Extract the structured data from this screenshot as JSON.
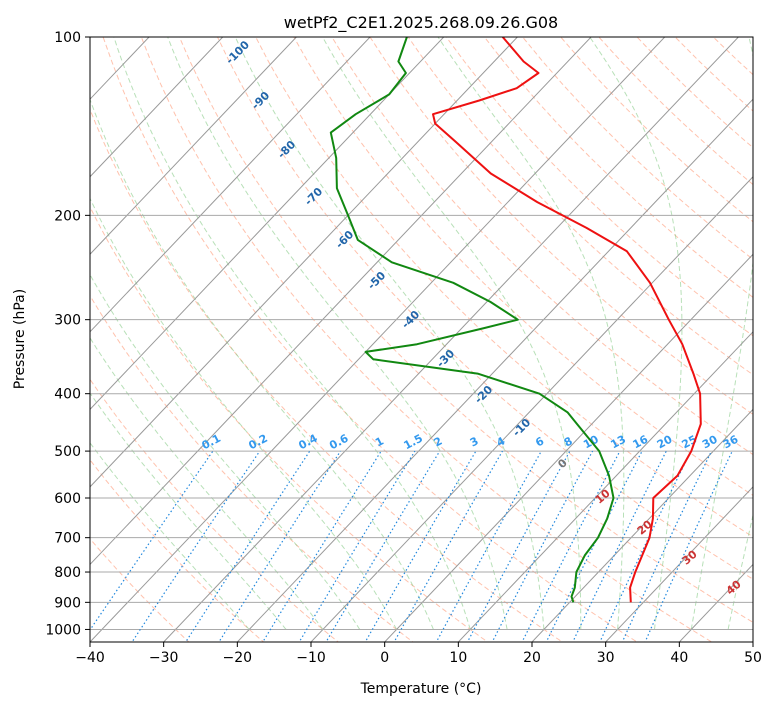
{
  "chart_data": {
    "type": "skew-t",
    "title": "wetPf2_C2E1.2025.268.09.26.G08",
    "xlabel": "Temperature (°C)",
    "ylabel": "Pressure (hPa)",
    "xlim": [
      -40,
      50
    ],
    "ylim_hpa": [
      1050,
      100
    ],
    "x_ticks": [
      -40,
      -30,
      -20,
      -10,
      0,
      10,
      20,
      30,
      40,
      50
    ],
    "x_tick_labels": [
      "−40",
      "−30",
      "−20",
      "−10",
      "0",
      "10",
      "20",
      "30",
      "40",
      "50"
    ],
    "y_ticks": [
      1000,
      900,
      800,
      700,
      600,
      500,
      400,
      300,
      200,
      100
    ],
    "y_tick_labels": [
      "1000",
      "900",
      "800",
      "700",
      "600",
      "500",
      "400",
      "300",
      "200",
      "100"
    ],
    "grid": true,
    "colors": {
      "temperature": "#ee1111",
      "dewpoint": "#118811",
      "isotherm": "#999999",
      "dry_adiabat": "#ff9977",
      "moist_adiabat": "#88cc88",
      "mixing_ratio": "#2288dd",
      "isotherm_label": "#2266aa",
      "dry_label": "#cc3333",
      "zero_label": "#777777"
    },
    "series": [
      {
        "name": "Temperature",
        "points": [
          [
            28.3,
            900
          ],
          [
            26.3,
            850
          ],
          [
            25.0,
            800
          ],
          [
            23.8,
            750
          ],
          [
            22.5,
            700
          ],
          [
            20.5,
            650
          ],
          [
            17.9,
            600
          ],
          [
            18.3,
            550
          ],
          [
            17.0,
            500
          ],
          [
            14.8,
            450
          ],
          [
            10.8,
            400
          ],
          [
            7.3,
            370
          ],
          [
            2.0,
            330
          ],
          [
            -3.0,
            300
          ],
          [
            -10.3,
            260
          ],
          [
            -17.5,
            230
          ],
          [
            -26.0,
            210
          ],
          [
            -36.0,
            190
          ],
          [
            -46.0,
            170
          ],
          [
            -55.0,
            150
          ],
          [
            -60.0,
            140
          ],
          [
            -61.5,
            135
          ],
          [
            -57.0,
            128
          ],
          [
            -53.5,
            122
          ],
          [
            -52.5,
            115
          ],
          [
            -56.0,
            110
          ],
          [
            -62.0,
            100
          ]
        ]
      },
      {
        "name": "Dewpoint",
        "points": [
          [
            20.5,
            900
          ],
          [
            19.5,
            880
          ],
          [
            18.8,
            850
          ],
          [
            17.0,
            800
          ],
          [
            16.0,
            750
          ],
          [
            15.5,
            700
          ],
          [
            14.3,
            650
          ],
          [
            12.5,
            600
          ],
          [
            9.0,
            550
          ],
          [
            4.5,
            500
          ],
          [
            -2.0,
            450
          ],
          [
            -4.8,
            430
          ],
          [
            -11.0,
            400
          ],
          [
            -22.0,
            370
          ],
          [
            -38.0,
            350
          ],
          [
            -40.0,
            340
          ],
          [
            -34.0,
            330
          ],
          [
            -27.0,
            310
          ],
          [
            -23.5,
            300
          ],
          [
            -29.5,
            280
          ],
          [
            -37.0,
            260
          ],
          [
            -48.0,
            240
          ],
          [
            -55.5,
            220
          ],
          [
            -60.0,
            200
          ],
          [
            -65.0,
            180
          ],
          [
            -69.0,
            160
          ],
          [
            -73.0,
            145
          ],
          [
            -72.0,
            135
          ],
          [
            -70.0,
            125
          ],
          [
            -70.5,
            115
          ],
          [
            -73.0,
            110
          ],
          [
            -75.0,
            100
          ]
        ]
      }
    ],
    "isotherm_labels": [
      "-100",
      "-90",
      "-80",
      "-70",
      "-60",
      "-50",
      "-40",
      "-30",
      "-20",
      "-10",
      "0"
    ],
    "dry_adiabat_labels": [
      "10",
      "20",
      "30",
      "40"
    ],
    "mixing_ratio_labels": [
      "0.1",
      "0.2",
      "0.4",
      "0.6",
      "1",
      "1.5",
      "2",
      "3",
      "4",
      "6",
      "8",
      "10",
      "13",
      "16",
      "20",
      "25",
      "30",
      "36"
    ]
  }
}
